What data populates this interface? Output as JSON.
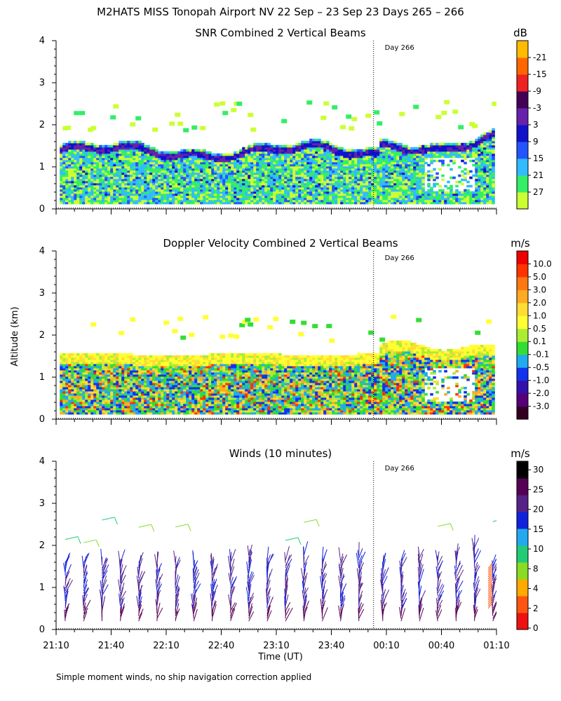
{
  "figure": {
    "title": "M2HATS MISS Tonopah Airport NV  22 Sep – 23 Sep 23 Days 265 – 266",
    "ylabel": "Altitude (km)",
    "xlabel": "Time (UT)",
    "footnote": "Simple moment winds, no ship navigation correction applied",
    "day_marker_label": "Day 266"
  },
  "chart_data": [
    {
      "type": "heatmap",
      "name": "snr",
      "title": "SNR Combined 2 Vertical Beams",
      "unit": "dB",
      "x_range_minutes": [
        0,
        240
      ],
      "x_tick_labels": [
        "21:10",
        "21:40",
        "22:10",
        "22:40",
        "23:10",
        "23:40",
        "00:10",
        "00:40",
        "01:10"
      ],
      "show_x_tick_labels": false,
      "ylim": [
        0,
        4
      ],
      "y_ticks": [
        0,
        1,
        2,
        3,
        4
      ],
      "day_marker_minutes": 173,
      "colorbar_labels": [
        "-21",
        "-15",
        "-9",
        "-3",
        "3",
        "9",
        "15",
        "21",
        "27"
      ],
      "colorbar_colors": [
        "#ccff33",
        "#33ee66",
        "#33bbff",
        "#2255ff",
        "#1111cc",
        "#6622aa",
        "#440055",
        "#ee2222",
        "#ff6600",
        "#ffbb00"
      ],
      "boundary_layer_top_km": 1.5,
      "notes": "Dense echo below ~1.5 km with strong layer near 1.4 km; sparse weak echoes 2-2.6 km."
    },
    {
      "type": "heatmap",
      "name": "doppler",
      "title": "Doppler Velocity Combined 2 Vertical Beams",
      "unit": "m/s",
      "x_range_minutes": [
        0,
        240
      ],
      "x_tick_labels": [
        "21:10",
        "21:40",
        "22:10",
        "22:40",
        "23:10",
        "23:40",
        "00:10",
        "00:40",
        "01:10"
      ],
      "show_x_tick_labels": false,
      "ylim": [
        0,
        4
      ],
      "y_ticks": [
        0,
        1,
        2,
        3,
        4
      ],
      "day_marker_minutes": 173,
      "colorbar_labels": [
        "10.0",
        "5.0",
        "3.0",
        "2.0",
        "1.0",
        "0.5",
        "0.1",
        "-0.1",
        "-0.5",
        "-1.0",
        "-2.0",
        "-3.0"
      ],
      "colorbar_colors": [
        "#330022",
        "#550077",
        "#3311aa",
        "#1133ee",
        "#22aaee",
        "#33dd33",
        "#aaee33",
        "#ffff33",
        "#ffdd33",
        "#ffaa22",
        "#ff7711",
        "#ff3300",
        "#ee0000"
      ],
      "boundary_layer_top_km": 1.55,
      "notes": "Mostly weak updrafts (green/yellow/orange) below ~1.6 km, some downdrafts (blue) and strong subsidence (red)."
    },
    {
      "type": "scatter",
      "name": "winds",
      "title": "Winds (10 minutes)",
      "unit": "m/s",
      "x_range_minutes": [
        0,
        240
      ],
      "x_tick_labels": [
        "21:10",
        "21:40",
        "22:10",
        "22:40",
        "23:10",
        "23:40",
        "00:10",
        "00:40",
        "01:10"
      ],
      "show_x_tick_labels": true,
      "ylim": [
        0,
        4
      ],
      "y_ticks": [
        0,
        1,
        2,
        3,
        4
      ],
      "day_marker_minutes": 173,
      "colorbar_labels": [
        "30",
        "25",
        "20",
        "15",
        "10",
        "8",
        "4",
        "2",
        "0"
      ],
      "colorbar_colors": [
        "#ee1111",
        "#ff5511",
        "#ffaa00",
        "#88dd22",
        "#22cc77",
        "#22aaee",
        "#1122dd",
        "#552288",
        "#550055",
        "#000000"
      ],
      "profile_minutes": [
        5,
        15,
        25,
        35,
        45,
        55,
        65,
        75,
        85,
        95,
        105,
        115,
        125,
        135,
        145,
        155,
        165,
        178,
        188,
        198,
        208,
        218,
        228,
        238
      ],
      "profile_top_km": [
        1.6,
        1.6,
        1.6,
        1.6,
        1.6,
        1.6,
        1.6,
        1.6,
        1.6,
        1.7,
        1.8,
        1.7,
        1.7,
        1.8,
        1.7,
        1.7,
        1.8,
        1.6,
        1.7,
        1.8,
        1.7,
        1.8,
        2.0,
        1.6
      ]
    }
  ]
}
